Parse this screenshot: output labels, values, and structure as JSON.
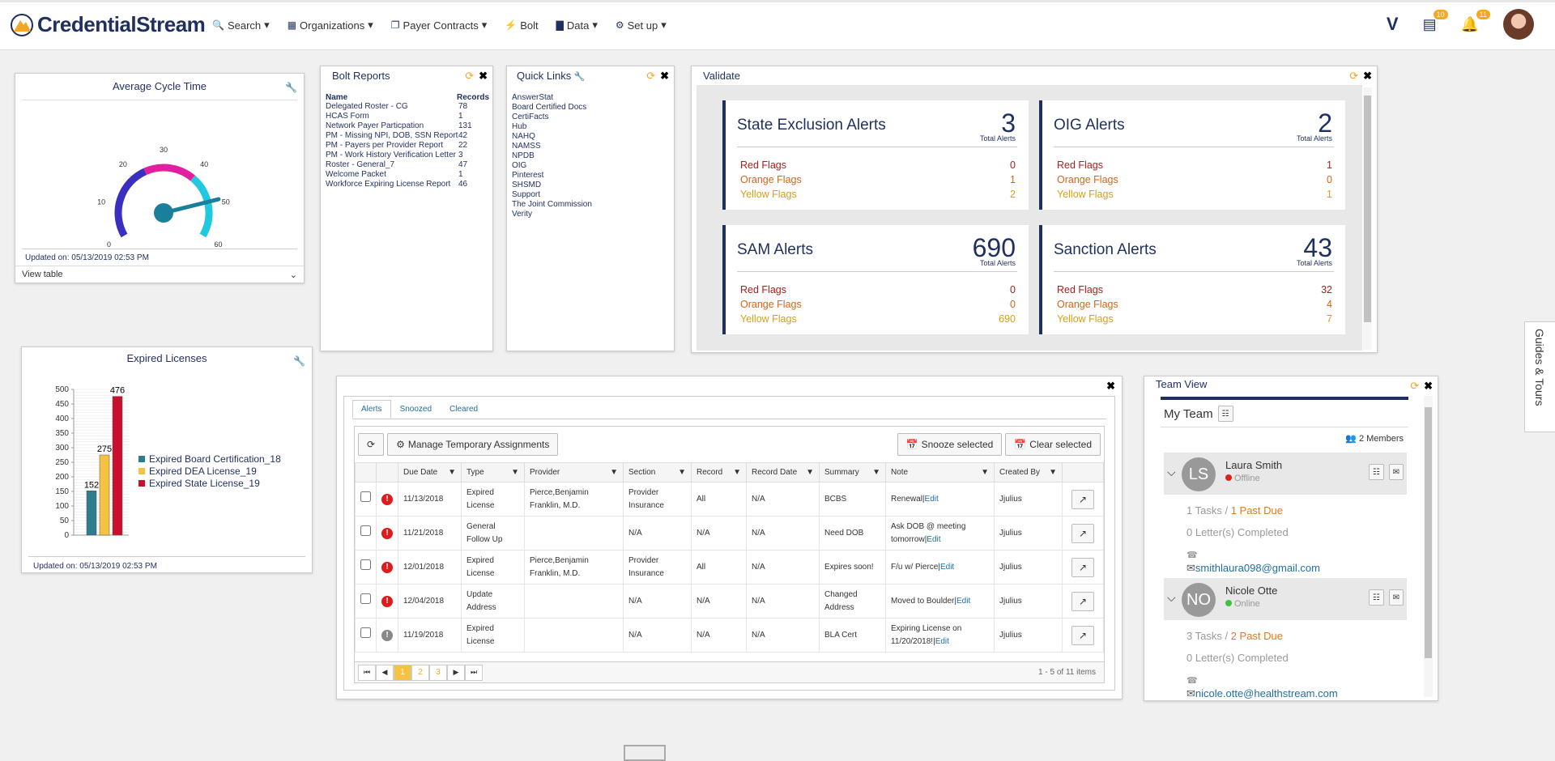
{
  "brand": {
    "name": "CredentialStream",
    "accent": "#1f2f5e",
    "orange": "#f5a623"
  },
  "nav": [
    {
      "label": "Search",
      "icon": "search-icon"
    },
    {
      "label": "Organizations",
      "icon": "building-icon"
    },
    {
      "label": "Payer Contracts",
      "icon": "document-icon"
    },
    {
      "label": "Bolt",
      "icon": "bolt-icon"
    },
    {
      "label": "Data",
      "icon": "bar-chart-icon"
    },
    {
      "label": "Set up",
      "icon": "gear-icon"
    }
  ],
  "topright": {
    "tasks_badge": "10",
    "notifications_badge": "11"
  },
  "avg_cycle": {
    "title": "Average Cycle Time",
    "ticks": [
      "0",
      "10",
      "20",
      "30",
      "40",
      "50",
      "60"
    ],
    "value": 49,
    "updated": "Updated on: 05/13/2019 02:53 PM",
    "view_table": "View table"
  },
  "bolt": {
    "title": "Bolt Reports",
    "col_name": "Name",
    "col_records": "Records",
    "rows": [
      {
        "name": "Delegated Roster - CG",
        "records": "78"
      },
      {
        "name": "HCAS Form",
        "records": "1"
      },
      {
        "name": "Network Payer Particpation",
        "records": "131"
      },
      {
        "name": "PM - Missing NPI, DOB, SSN Report",
        "records": "42"
      },
      {
        "name": "PM - Payers per Provider Report",
        "records": "22"
      },
      {
        "name": "PM - Work History Verification Letter",
        "records": "3"
      },
      {
        "name": "Roster - General_7",
        "records": "47"
      },
      {
        "name": "Welcome Packet",
        "records": "1"
      },
      {
        "name": "Workforce Expiring License Report",
        "records": "46"
      }
    ]
  },
  "quick_links": {
    "title": "Quick Links",
    "items": [
      "AnswerStat",
      "Board Certified Docs",
      "CertiFacts",
      "Hub",
      "NAHQ",
      "NAMSS",
      "NPDB",
      "OIG",
      "Pinterest",
      "SHSMD",
      "Support",
      "The Joint Commission",
      "Verity"
    ]
  },
  "validate": {
    "title": "Validate",
    "total_label": "Total Alerts",
    "red_label": "Red Flags",
    "orange_label": "Orange Flags",
    "yellow_label": "Yellow Flags",
    "cards": [
      {
        "title": "State Exclusion Alerts",
        "total": "3",
        "red": "0",
        "orange": "1",
        "yellow": "2"
      },
      {
        "title": "OIG Alerts",
        "total": "2",
        "red": "1",
        "orange": "0",
        "yellow": "1"
      },
      {
        "title": "SAM Alerts",
        "total": "690",
        "red": "0",
        "orange": "0",
        "yellow": "690"
      },
      {
        "title": "Sanction Alerts",
        "total": "43",
        "red": "32",
        "orange": "4",
        "yellow": "7"
      }
    ]
  },
  "expired": {
    "title": "Expired Licenses",
    "updated": "Updated on: 05/13/2019 02:53 PM"
  },
  "chart_data": {
    "type": "bar",
    "title": "Expired Licenses",
    "ylim": [
      0,
      500
    ],
    "yticks": [
      "0",
      "50",
      "100",
      "150",
      "200",
      "250",
      "300",
      "350",
      "400",
      "450",
      "500"
    ],
    "series": [
      {
        "name": "Expired Board Certification_18",
        "value": 152,
        "label": "152",
        "color": "#2e7d8c"
      },
      {
        "name": "Expired DEA License_19",
        "value": 275,
        "label": "275",
        "color": "#f5c242"
      },
      {
        "name": "Expired State License_19",
        "value": 476,
        "label": "476",
        "color": "#c8102e"
      }
    ]
  },
  "alerts_panel": {
    "tabs": [
      "Alerts",
      "Snoozed",
      "Cleared"
    ],
    "manage_label": "Manage Temporary Assignments",
    "snooze_label": "Snooze selected",
    "clear_label": "Clear selected",
    "columns": [
      "Due Date",
      "Type",
      "Provider",
      "Section",
      "Record",
      "Record Date",
      "Summary",
      "Note",
      "Created By"
    ],
    "rows": [
      {
        "due": "11/13/2018",
        "type": "Expired License",
        "provider": "Pierce,Benjamin Franklin, M.D.",
        "section": "Provider Insurance",
        "record": "All",
        "record_date": "N/A",
        "summary": "BCBS",
        "note": "Renewal",
        "edit": "Edit",
        "created": "Jjulius",
        "severity": "red"
      },
      {
        "due": "11/21/2018",
        "type": "General Follow Up",
        "provider": "",
        "section": "N/A",
        "record": "N/A",
        "record_date": "N/A",
        "summary": "Need DOB",
        "note": "Ask DOB @ meeting tomorrow",
        "edit": "Edit",
        "created": "Jjulius",
        "severity": "red"
      },
      {
        "due": "12/01/2018",
        "type": "Expired License",
        "provider": "Pierce,Benjamin Franklin, M.D.",
        "section": "Provider Insurance",
        "record": "All",
        "record_date": "N/A",
        "summary": "Expires soon!",
        "note": "F/u w/ Pierce",
        "edit": "Edit",
        "created": "Jjulius",
        "severity": "red"
      },
      {
        "due": "12/04/2018",
        "type": "Update Address",
        "provider": "",
        "section": "N/A",
        "record": "N/A",
        "record_date": "N/A",
        "summary": "Changed Address",
        "note": "Moved to Boulder",
        "edit": "Edit",
        "created": "Jjulius",
        "severity": "red"
      },
      {
        "due": "11/19/2018",
        "type": "Expired License",
        "provider": "",
        "section": "N/A",
        "record": "N/A",
        "record_date": "N/A",
        "summary": "BLA Cert",
        "note": "Expiring License on 11/20/2018!",
        "edit": "Edit",
        "created": "Jjulius",
        "severity": "grey"
      }
    ],
    "pages": [
      "1",
      "2",
      "3"
    ],
    "summary": "1 - 5 of 11 items"
  },
  "team": {
    "title": "Team View",
    "my_team": "My Team",
    "members_count": "2 Members",
    "members": [
      {
        "initials": "LS",
        "name": "Laura Smith",
        "status": "Offline",
        "status_color": "#e02020",
        "tasks": "1 Tasks",
        "past_due": "1 Past Due",
        "letters": "0 Letter(s) Completed",
        "email": "smithlaura098@gmail.com"
      },
      {
        "initials": "NO",
        "name": "Nicole Otte",
        "status": "Online",
        "status_color": "#3cc43c",
        "tasks": "3 Tasks",
        "past_due": "2 Past Due",
        "letters": "0 Letter(s) Completed",
        "email": "nicole.otte@healthstream.com"
      }
    ]
  },
  "side_tab": {
    "label": "Guides & Tours"
  }
}
